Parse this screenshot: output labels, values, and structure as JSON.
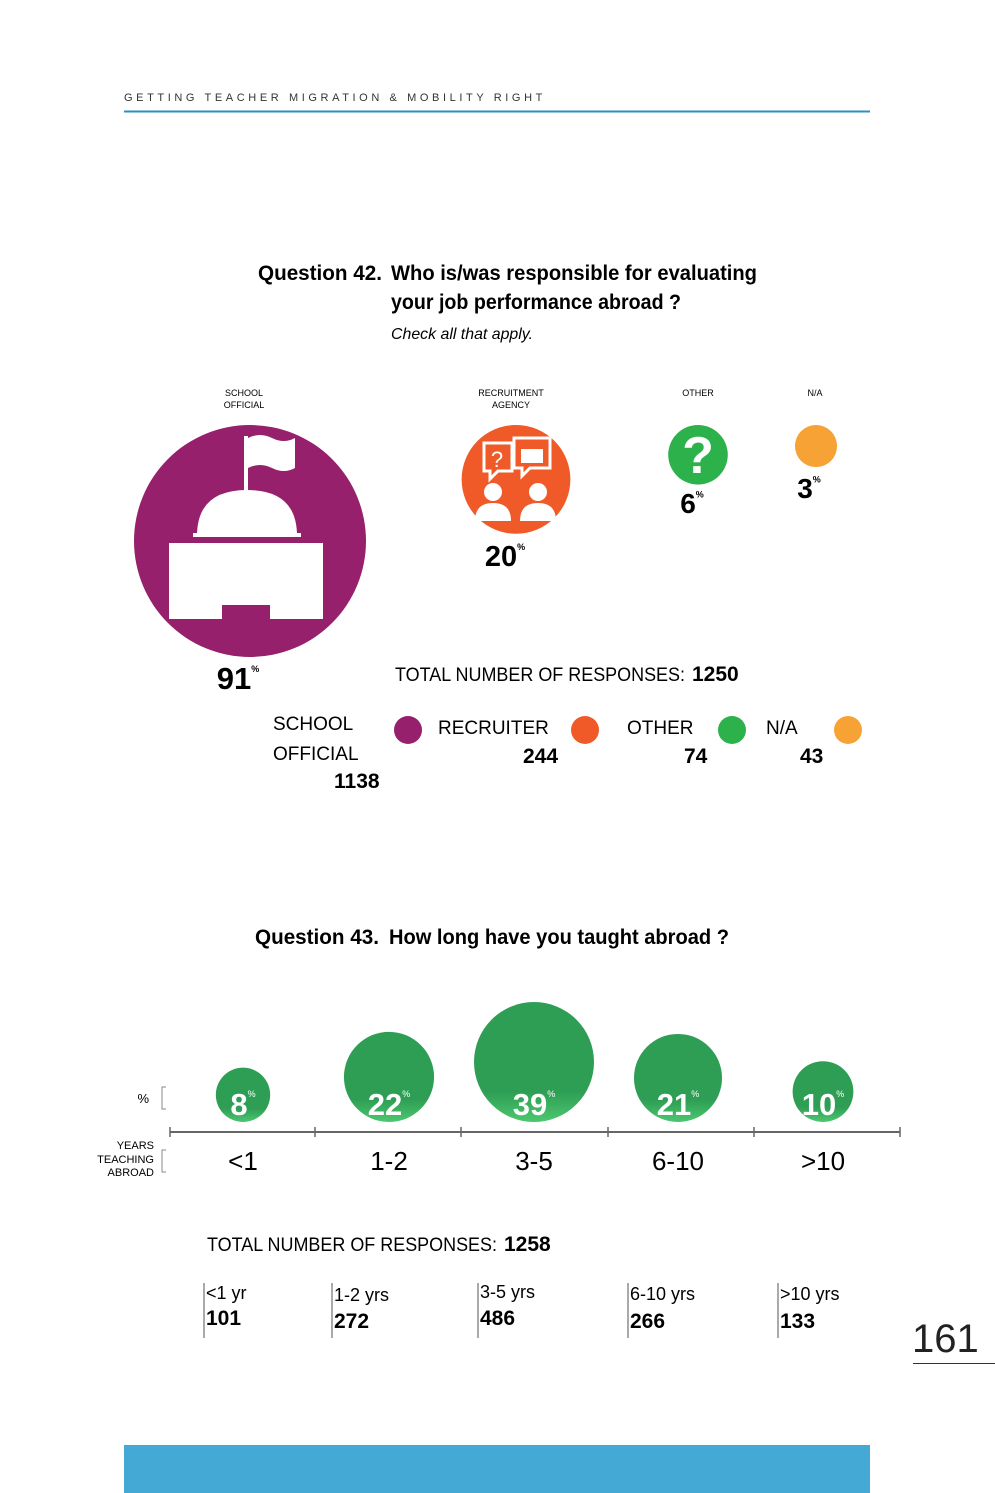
{
  "header": {
    "running_title": "GETTING TEACHER MIGRATION & MOBILITY RIGHT",
    "rule_color": "#2b8fc4"
  },
  "page_number": "161",
  "footer_bar_color": "#45a9d6",
  "q42": {
    "number": "Question 42.",
    "title_line1": "Who is/was responsible for evaluating",
    "title_line2": "your job performance abroad ?",
    "note": "Check all that apply.",
    "total_label": "TOTAL NUMBER OF RESPONSES:",
    "total_value": "1250"
  },
  "q43": {
    "number": "Question 43.",
    "title": "How long have you taught abroad ?",
    "total_label": "TOTAL NUMBER OF RESPONSES:",
    "total_value": "1258",
    "y_label_pct": "%",
    "x_label": [
      "YEARS",
      "TEACHING",
      "ABROAD"
    ]
  },
  "chart_data": [
    {
      "type": "bubble",
      "title": "Who is/was responsible for evaluating your job performance abroad ?",
      "unit": "%",
      "categories": [
        {
          "label_lines": [
            "SCHOOL",
            "OFFICIAL"
          ],
          "legend_lines": [
            "SCHOOL",
            "OFFICIAL"
          ],
          "percent": 91,
          "count": 1138,
          "color": "#96206c",
          "icon": "school-building-icon"
        },
        {
          "label_lines": [
            "RECRUITMENT",
            "AGENCY"
          ],
          "legend_lines": [
            "RECRUITER"
          ],
          "percent": 20,
          "count": 244,
          "color": "#f05a28",
          "icon": "recruiter-interview-icon"
        },
        {
          "label_lines": [
            "OTHER"
          ],
          "legend_lines": [
            "OTHER"
          ],
          "percent": 6,
          "count": 74,
          "color": "#2db14b",
          "icon": "question-mark-icon"
        },
        {
          "label_lines": [
            "N/A"
          ],
          "legend_lines": [
            "N/A"
          ],
          "percent": 3,
          "count": 43,
          "color": "#f7a234",
          "icon": ""
        }
      ]
    },
    {
      "type": "bubble",
      "title": "How long have you taught abroad ?",
      "unit": "%",
      "color": "#2e9e55",
      "categories": [
        "<1",
        "1-2",
        "3-5",
        "6-10",
        ">10"
      ],
      "values": [
        8,
        22,
        39,
        21,
        10
      ],
      "table_labels": [
        "<1 yr",
        "1-2 yrs",
        "3-5 yrs",
        "6-10 yrs",
        ">10 yrs"
      ],
      "counts": [
        101,
        272,
        486,
        266,
        133
      ]
    }
  ]
}
